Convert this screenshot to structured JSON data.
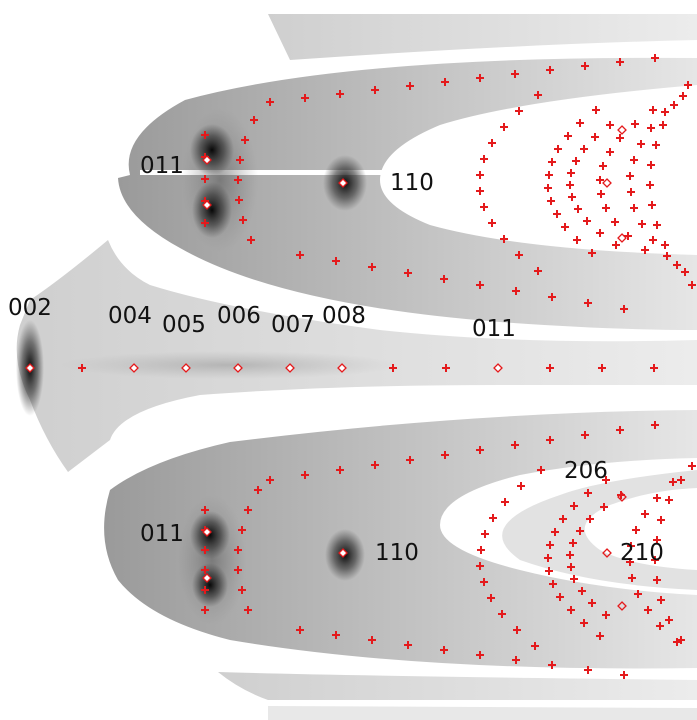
{
  "colors": {
    "marker": "#e41a1c",
    "background": "#ffffff",
    "detector_light": "#dddddd",
    "detector_mid": "#a8a8a8",
    "intense_spot": "#1a1a1a",
    "label_text": "#111111"
  },
  "labels": {
    "l_011_top": "011",
    "l_110_top": "110",
    "l_002": "002",
    "l_004": "004",
    "l_005": "005",
    "l_006": "006",
    "l_007": "007",
    "l_008": "008",
    "l_011_mid": "011",
    "l_206": "206",
    "l_011_bottom": "011",
    "l_110_bottom": "110",
    "l_210": "210"
  }
}
